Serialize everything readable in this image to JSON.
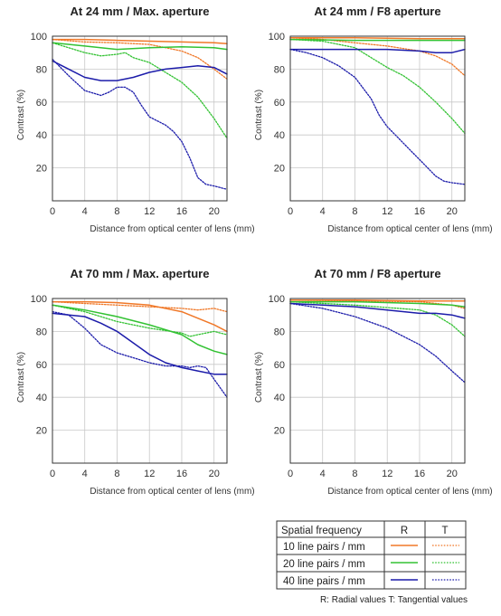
{
  "colors": {
    "10": "#f07828",
    "20": "#33c233",
    "40": "#1c1caa",
    "grid": "#c8c8c8",
    "frame": "#333333"
  },
  "chart_data": [
    {
      "type": "line",
      "title": "At 24 mm / Max. aperture",
      "xlabel": "Distance from optical center of lens (mm)",
      "ylabel": "Contrast (%)",
      "xlim": [
        0,
        21.6
      ],
      "ylim": [
        0,
        100
      ],
      "xticks": [
        0,
        4,
        8,
        12,
        16,
        20
      ],
      "yticks": [
        20,
        40,
        60,
        80,
        100
      ],
      "grid": true,
      "series": [
        {
          "freq": "10",
          "type": "radial",
          "x": [
            0,
            4,
            8,
            12,
            16,
            20,
            21.6
          ],
          "y": [
            98,
            98,
            97.5,
            97,
            96.5,
            96,
            95.5
          ]
        },
        {
          "freq": "10",
          "type": "tangential",
          "x": [
            0,
            4,
            8,
            12,
            16,
            18,
            20,
            21.6
          ],
          "y": [
            98,
            96.5,
            96,
            95,
            91,
            87,
            80,
            74
          ]
        },
        {
          "freq": "20",
          "type": "radial",
          "x": [
            0,
            4,
            8,
            12,
            16,
            20,
            21.6
          ],
          "y": [
            96,
            94,
            92,
            93,
            93.5,
            93,
            92
          ]
        },
        {
          "freq": "20",
          "type": "tangential",
          "x": [
            0,
            4,
            6,
            8,
            9,
            10,
            12,
            16,
            18,
            20,
            21.6
          ],
          "y": [
            96,
            90,
            88,
            89,
            90,
            87,
            84,
            72,
            63,
            50,
            38
          ]
        },
        {
          "freq": "40",
          "type": "radial",
          "x": [
            0,
            2,
            4,
            6,
            8,
            10,
            12,
            14,
            16,
            18,
            20,
            21.6
          ],
          "y": [
            85,
            80,
            75,
            73,
            73,
            75,
            78,
            80,
            81,
            82,
            81,
            77
          ]
        },
        {
          "freq": "40",
          "type": "tangential",
          "x": [
            0,
            2,
            4,
            6,
            7,
            8,
            9,
            10,
            11,
            12,
            14,
            15,
            16,
            17,
            18,
            19,
            20,
            21.6
          ],
          "y": [
            86,
            76,
            67,
            64,
            66,
            69,
            69,
            66,
            58,
            51,
            46,
            42,
            36,
            26,
            14,
            10,
            9,
            7
          ]
        }
      ]
    },
    {
      "type": "line",
      "title": "At 24 mm / F8 aperture",
      "xlabel": "Distance from optical center of lens (mm)",
      "ylabel": "Contrast (%)",
      "xlim": [
        0,
        21.6
      ],
      "ylim": [
        0,
        100
      ],
      "xticks": [
        0,
        4,
        8,
        12,
        16,
        20
      ],
      "yticks": [
        20,
        40,
        60,
        80,
        100
      ],
      "grid": true,
      "series": [
        {
          "freq": "10",
          "type": "radial",
          "x": [
            0,
            8,
            16,
            21.6
          ],
          "y": [
            99,
            99,
            98.5,
            98.5
          ]
        },
        {
          "freq": "10",
          "type": "tangential",
          "x": [
            0,
            4,
            8,
            12,
            16,
            18,
            20,
            21.6
          ],
          "y": [
            99,
            98,
            96,
            94,
            91,
            88,
            83,
            76
          ]
        },
        {
          "freq": "20",
          "type": "radial",
          "x": [
            0,
            8,
            16,
            21.6
          ],
          "y": [
            98,
            97.5,
            97.5,
            97.5
          ]
        },
        {
          "freq": "20",
          "type": "tangential",
          "x": [
            0,
            4,
            8,
            10,
            12,
            14,
            16,
            18,
            20,
            21.6
          ],
          "y": [
            98,
            97,
            93,
            87,
            81,
            76,
            69,
            60,
            50,
            41
          ]
        },
        {
          "freq": "40",
          "type": "radial",
          "x": [
            0,
            4,
            8,
            12,
            16,
            18,
            20,
            21.6
          ],
          "y": [
            92,
            92,
            92,
            92,
            91,
            90,
            90,
            92
          ]
        },
        {
          "freq": "40",
          "type": "tangential",
          "x": [
            0,
            2,
            4,
            6,
            8,
            10,
            11,
            12,
            13,
            14,
            15,
            16,
            17,
            18,
            19,
            20,
            21.6
          ],
          "y": [
            92,
            90,
            87,
            82,
            75,
            62,
            52,
            45,
            40,
            35,
            30,
            25,
            20,
            15,
            12,
            11,
            10
          ]
        }
      ]
    },
    {
      "type": "line",
      "title": "At 70 mm / Max. aperture",
      "xlabel": "Distance from optical center of lens (mm)",
      "ylabel": "Contrast (%)",
      "xlim": [
        0,
        21.6
      ],
      "ylim": [
        0,
        100
      ],
      "xticks": [
        0,
        4,
        8,
        12,
        16,
        20
      ],
      "yticks": [
        20,
        40,
        60,
        80,
        100
      ],
      "grid": true,
      "series": [
        {
          "freq": "10",
          "type": "radial",
          "x": [
            0,
            4,
            8,
            12,
            16,
            18,
            20,
            21.6
          ],
          "y": [
            98,
            98,
            97.5,
            96,
            92,
            88,
            84,
            80
          ]
        },
        {
          "freq": "10",
          "type": "tangential",
          "x": [
            0,
            4,
            8,
            12,
            16,
            18,
            20,
            21.6
          ],
          "y": [
            98,
            97,
            96,
            95,
            94,
            93,
            94,
            92
          ]
        },
        {
          "freq": "20",
          "type": "radial",
          "x": [
            0,
            4,
            8,
            12,
            16,
            17,
            18,
            20,
            21.6
          ],
          "y": [
            96,
            93,
            89,
            84,
            78,
            75,
            72,
            68,
            66
          ]
        },
        {
          "freq": "20",
          "type": "tangential",
          "x": [
            0,
            4,
            8,
            12,
            16,
            17,
            18,
            20,
            21.6
          ],
          "y": [
            96,
            92,
            86,
            82,
            79,
            77,
            78,
            80,
            78
          ]
        },
        {
          "freq": "40",
          "type": "radial",
          "x": [
            0,
            4,
            6,
            8,
            10,
            12,
            14,
            16,
            18,
            20,
            21.6
          ],
          "y": [
            91,
            89,
            85,
            80,
            73,
            66,
            61,
            58,
            56,
            54,
            54
          ]
        },
        {
          "freq": "40",
          "type": "tangential",
          "x": [
            0,
            2,
            4,
            6,
            8,
            10,
            12,
            14,
            16,
            17,
            18,
            19,
            20,
            21.6
          ],
          "y": [
            92,
            90,
            82,
            72,
            67,
            64,
            61,
            59,
            59,
            58,
            59,
            58,
            51,
            40
          ]
        }
      ]
    },
    {
      "type": "line",
      "title": "At 70 mm / F8 aperture",
      "xlabel": "Distance from optical center of lens (mm)",
      "ylabel": "Contrast (%)",
      "xlim": [
        0,
        21.6
      ],
      "ylim": [
        0,
        100
      ],
      "xticks": [
        0,
        4,
        8,
        12,
        16,
        20
      ],
      "yticks": [
        20,
        40,
        60,
        80,
        100
      ],
      "grid": true,
      "series": [
        {
          "freq": "10",
          "type": "radial",
          "x": [
            0,
            8,
            16,
            21.6
          ],
          "y": [
            99,
            99,
            98.5,
            98.5
          ]
        },
        {
          "freq": "10",
          "type": "tangential",
          "x": [
            0,
            8,
            16,
            20,
            21.6
          ],
          "y": [
            99,
            98.5,
            98,
            96,
            94
          ]
        },
        {
          "freq": "20",
          "type": "radial",
          "x": [
            0,
            8,
            16,
            20,
            21.6
          ],
          "y": [
            98,
            98,
            97,
            96,
            95
          ]
        },
        {
          "freq": "20",
          "type": "tangential",
          "x": [
            0,
            8,
            16,
            18,
            20,
            21.6
          ],
          "y": [
            98,
            96,
            93,
            90,
            84,
            77
          ]
        },
        {
          "freq": "40",
          "type": "radial",
          "x": [
            0,
            4,
            8,
            12,
            16,
            18,
            20,
            21.6
          ],
          "y": [
            97,
            96,
            95,
            93,
            91,
            91,
            90,
            88
          ]
        },
        {
          "freq": "40",
          "type": "tangential",
          "x": [
            0,
            4,
            8,
            12,
            14,
            16,
            18,
            20,
            21.6
          ],
          "y": [
            97,
            94,
            89,
            82,
            77,
            72,
            65,
            56,
            49
          ]
        }
      ]
    }
  ],
  "legend": {
    "header": "Spatial frequency",
    "col_r": "R",
    "col_t": "T",
    "rows": [
      {
        "freq": "10",
        "label": "10 line pairs / mm"
      },
      {
        "freq": "20",
        "label": "20 line pairs / mm"
      },
      {
        "freq": "40",
        "label": "40 line pairs / mm"
      }
    ],
    "note": "R: Radial values  T: Tangential values"
  }
}
